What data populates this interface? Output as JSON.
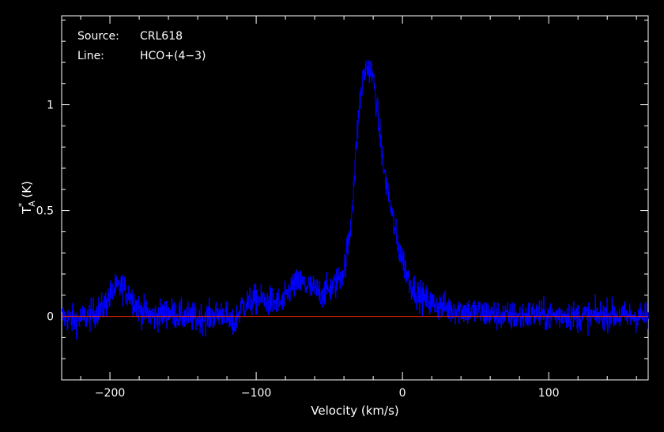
{
  "chart_data": {
    "type": "line",
    "title": "",
    "annotations": [
      {
        "label": "Source:",
        "value": "CRL618"
      },
      {
        "label": "Line:",
        "value": "HCO+(4−3)"
      }
    ],
    "xlabel": "Velocity (km/s)",
    "ylabel": {
      "main": "T",
      "sup": "*",
      "sub": "A",
      "unit": "(K)"
    },
    "xlim": [
      -233,
      168
    ],
    "ylim": [
      -0.3,
      1.42
    ],
    "xticks": [
      {
        "value": -200,
        "label": "−200"
      },
      {
        "value": -100,
        "label": "−100"
      },
      {
        "value": 0,
        "label": "0"
      },
      {
        "value": 100,
        "label": "100"
      }
    ],
    "yticks": [
      {
        "value": 0,
        "label": "0"
      },
      {
        "value": 0.5,
        "label": "0.5"
      },
      {
        "value": 1,
        "label": "1"
      }
    ],
    "grid": false,
    "colors": {
      "background": "#000000",
      "axes": "#ffffff",
      "spectrum": "#0000ff",
      "baseline": "#ff2a00"
    },
    "baseline": {
      "y": 0
    },
    "series": [
      {
        "x": [
          -233,
          -225,
          -215,
          -205,
          -198,
          -192,
          -186,
          -180,
          -170,
          -160,
          -150,
          -140,
          -130,
          -122,
          -116,
          -110,
          -100,
          -90,
          -82,
          -76,
          -70,
          -62,
          -55,
          -47,
          -40,
          -36,
          -33,
          -31,
          -29,
          -27,
          -25,
          -23,
          -21,
          -19,
          -17,
          -15,
          -13,
          -11,
          -9,
          -7,
          -5,
          -3,
          0,
          3,
          6,
          10,
          15,
          20,
          25,
          30,
          40,
          50,
          60,
          70,
          80,
          90,
          100,
          110,
          120,
          130,
          140,
          150,
          160,
          168
        ],
        "y": [
          0.0,
          -0.02,
          0.0,
          0.04,
          0.12,
          0.14,
          0.1,
          0.03,
          0.0,
          0.02,
          0.0,
          -0.01,
          0.0,
          0.02,
          -0.05,
          0.05,
          0.08,
          0.07,
          0.06,
          0.14,
          0.16,
          0.13,
          0.11,
          0.14,
          0.22,
          0.4,
          0.66,
          0.87,
          1.03,
          1.13,
          1.17,
          1.18,
          1.15,
          1.07,
          0.95,
          0.82,
          0.71,
          0.62,
          0.55,
          0.47,
          0.4,
          0.33,
          0.27,
          0.2,
          0.15,
          0.11,
          0.08,
          0.06,
          0.05,
          0.04,
          0.03,
          0.02,
          0.01,
          0.0,
          0.0,
          0.01,
          0.0,
          0.01,
          0.0,
          0.0,
          0.01,
          0.0,
          0.0,
          0.0
        ]
      }
    ]
  }
}
